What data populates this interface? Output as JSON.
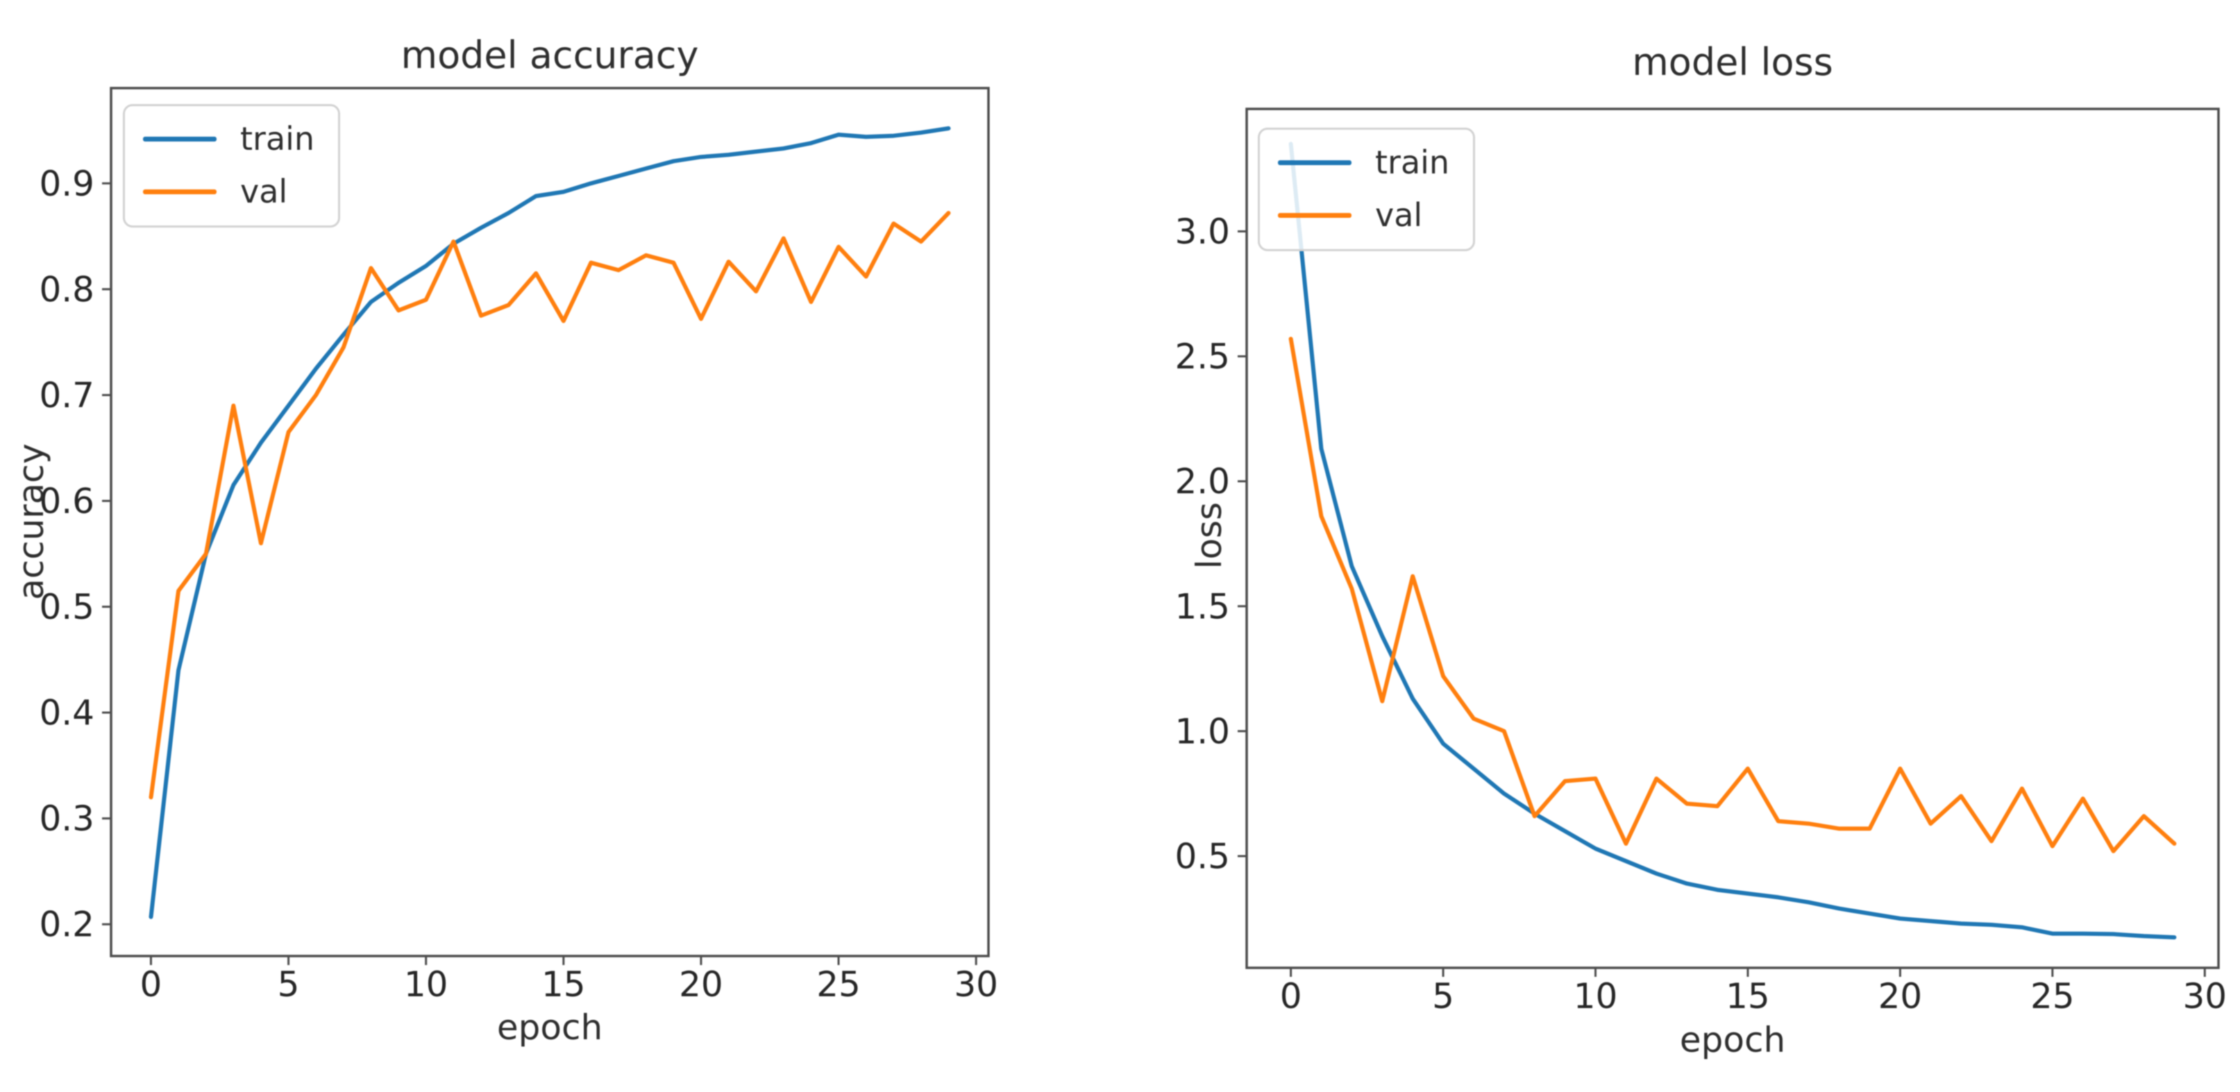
{
  "page": {
    "background_color": "#ffffff",
    "accent_blue": "#1f77b4",
    "accent_orange": "#ff7f0e",
    "spine_color": "#4d4d4d",
    "tick_label_color": "#262626"
  },
  "chart_data": [
    {
      "type": "line",
      "title": "model accuracy",
      "xlabel": "epoch",
      "ylabel": "accuracy",
      "legend_position": "upper left",
      "grid": false,
      "xlim": [
        -1.45,
        30.45
      ],
      "ylim": [
        0.17,
        0.99
      ],
      "xticks": [
        0,
        5,
        10,
        15,
        20,
        25,
        30
      ],
      "xtick_labels": [
        "0",
        "5",
        "10",
        "15",
        "20",
        "25",
        "30"
      ],
      "yticks": [
        0.2,
        0.3,
        0.4,
        0.5,
        0.6,
        0.7,
        0.8,
        0.9
      ],
      "ytick_labels": [
        "0.2",
        "0.3",
        "0.4",
        "0.5",
        "0.6",
        "0.7",
        "0.8",
        "0.9"
      ],
      "x": [
        0,
        1,
        2,
        3,
        4,
        5,
        6,
        7,
        8,
        9,
        10,
        11,
        12,
        13,
        14,
        15,
        16,
        17,
        18,
        19,
        20,
        21,
        22,
        23,
        24,
        25,
        26,
        27,
        28,
        29
      ],
      "series": [
        {
          "name": "train",
          "color": "#1f77b4",
          "values": [
            0.207,
            0.44,
            0.55,
            0.615,
            0.655,
            0.69,
            0.725,
            0.757,
            0.788,
            0.806,
            0.822,
            0.843,
            0.858,
            0.872,
            0.888,
            0.892,
            0.9,
            0.907,
            0.914,
            0.921,
            0.925,
            0.927,
            0.93,
            0.933,
            0.938,
            0.946,
            0.944,
            0.945,
            0.948,
            0.952
          ]
        },
        {
          "name": "val",
          "color": "#ff7f0e",
          "values": [
            0.32,
            0.515,
            0.55,
            0.69,
            0.56,
            0.665,
            0.7,
            0.745,
            0.82,
            0.78,
            0.79,
            0.845,
            0.775,
            0.785,
            0.815,
            0.77,
            0.825,
            0.818,
            0.832,
            0.825,
            0.772,
            0.826,
            0.798,
            0.848,
            0.788,
            0.84,
            0.812,
            0.862,
            0.845,
            0.872
          ]
        }
      ]
    },
    {
      "type": "line",
      "title": "model loss",
      "xlabel": "epoch",
      "ylabel": "loss",
      "legend_position": "upper left",
      "grid": false,
      "xlim": [
        -1.45,
        30.45
      ],
      "ylim": [
        0.053,
        3.49
      ],
      "xticks": [
        0,
        5,
        10,
        15,
        20,
        25,
        30
      ],
      "xtick_labels": [
        "0",
        "5",
        "10",
        "15",
        "20",
        "25",
        "30"
      ],
      "yticks": [
        0.5,
        1.0,
        1.5,
        2.0,
        2.5,
        3.0
      ],
      "ytick_labels": [
        "0.5",
        "1.0",
        "1.5",
        "2.0",
        "2.5",
        "3.0"
      ],
      "x": [
        0,
        1,
        2,
        3,
        4,
        5,
        6,
        7,
        8,
        9,
        10,
        11,
        12,
        13,
        14,
        15,
        16,
        17,
        18,
        19,
        20,
        21,
        22,
        23,
        24,
        25,
        26,
        27,
        28,
        29
      ],
      "series": [
        {
          "name": "train",
          "color": "#1f77b4",
          "values": [
            3.35,
            2.13,
            1.66,
            1.38,
            1.13,
            0.95,
            0.85,
            0.75,
            0.67,
            0.6,
            0.53,
            0.48,
            0.43,
            0.39,
            0.365,
            0.35,
            0.335,
            0.315,
            0.29,
            0.27,
            0.25,
            0.24,
            0.23,
            0.225,
            0.215,
            0.19,
            0.19,
            0.188,
            0.18,
            0.175
          ]
        },
        {
          "name": "val",
          "color": "#ff7f0e",
          "values": [
            2.57,
            1.86,
            1.57,
            1.12,
            1.62,
            1.22,
            1.05,
            1.0,
            0.66,
            0.8,
            0.81,
            0.55,
            0.81,
            0.71,
            0.7,
            0.85,
            0.64,
            0.63,
            0.61,
            0.61,
            0.85,
            0.63,
            0.74,
            0.56,
            0.77,
            0.54,
            0.73,
            0.52,
            0.66,
            0.55
          ]
        }
      ]
    }
  ]
}
